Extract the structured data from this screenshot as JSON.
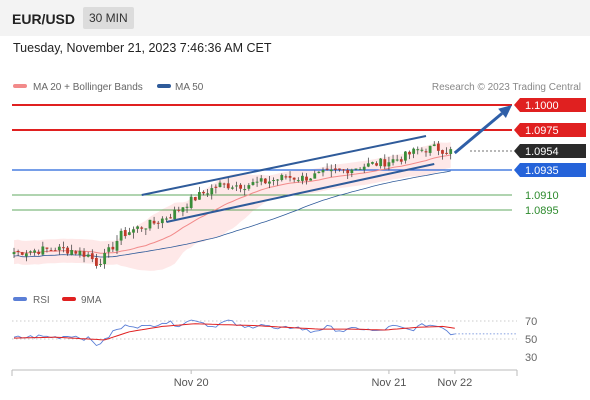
{
  "header": {
    "pair": "EUR/USD",
    "timeframe": "30 MIN",
    "datetime": "Tuesday, November 21, 2023 7:46:36 AM CET"
  },
  "legend": {
    "ma20": {
      "label": "MA 20 + Bollinger Bands",
      "color": "#f28a8a"
    },
    "ma50": {
      "label": "MA 50",
      "color": "#2f5b9a"
    },
    "source": "Research © 2023 Trading Central"
  },
  "rsi_legend": {
    "rsi": {
      "label": "RSI",
      "color": "#5b7fd6"
    },
    "ma9": {
      "label": "9MA",
      "color": "#e02020"
    }
  },
  "chart_data": {
    "type": "candlestick",
    "price_axis": {
      "min": 1.0835,
      "max": 1.1005
    },
    "x_labels": [
      {
        "label": "Nov 20",
        "index": 43
      },
      {
        "label": "Nov 21",
        "index": 91
      },
      {
        "label": "Nov 22",
        "index": 107
      }
    ],
    "last_price": 1.0954,
    "levels": [
      {
        "price": 1.1,
        "label": "1.1000",
        "kind": "resistance",
        "color": "#e02020"
      },
      {
        "price": 1.0975,
        "label": "1.0975",
        "kind": "resistance",
        "color": "#e02020"
      },
      {
        "price": 1.0935,
        "label": "1.0935",
        "kind": "pivot",
        "color": "#2563d9"
      },
      {
        "price": 1.091,
        "label": "1.0910",
        "kind": "support",
        "color": "#2e8b2e"
      },
      {
        "price": 1.0895,
        "label": "1.0895",
        "kind": "support",
        "color": "#2e8b2e"
      }
    ],
    "anchors": [
      [
        0,
        1.0853
      ],
      [
        10,
        1.0856
      ],
      [
        14,
        1.0855
      ],
      [
        18,
        1.085
      ],
      [
        20,
        1.0842
      ],
      [
        22,
        1.0848
      ],
      [
        26,
        1.087
      ],
      [
        30,
        1.0877
      ],
      [
        34,
        1.0882
      ],
      [
        38,
        1.089
      ],
      [
        42,
        1.0902
      ],
      [
        46,
        1.0912
      ],
      [
        50,
        1.092
      ],
      [
        56,
        1.092
      ],
      [
        62,
        1.0924
      ],
      [
        66,
        1.0928
      ],
      [
        70,
        1.0927
      ],
      [
        74,
        1.093
      ],
      [
        78,
        1.0933
      ],
      [
        82,
        1.0937
      ],
      [
        86,
        1.094
      ],
      [
        90,
        1.0943
      ],
      [
        94,
        1.0947
      ],
      [
        98,
        1.0955
      ],
      [
        102,
        1.0957
      ],
      [
        106,
        1.0954
      ]
    ],
    "channel": {
      "upper": [
        [
          31,
          1.091
        ],
        [
          100,
          1.0969
        ]
      ],
      "lower": [
        [
          37,
          1.0883
        ],
        [
          102,
          1.0941
        ]
      ]
    },
    "rsi": {
      "axis": {
        "min": 20,
        "max": 80
      },
      "ticks": [
        70,
        50,
        30
      ],
      "anchors": [
        [
          0,
          51
        ],
        [
          6,
          53
        ],
        [
          10,
          52
        ],
        [
          14,
          54
        ],
        [
          18,
          50
        ],
        [
          20,
          44
        ],
        [
          22,
          48
        ],
        [
          24,
          58
        ],
        [
          28,
          66
        ],
        [
          32,
          63
        ],
        [
          36,
          69
        ],
        [
          40,
          66
        ],
        [
          44,
          72
        ],
        [
          48,
          64
        ],
        [
          52,
          70
        ],
        [
          56,
          62
        ],
        [
          60,
          67
        ],
        [
          64,
          60
        ],
        [
          68,
          64
        ],
        [
          72,
          58
        ],
        [
          76,
          63
        ],
        [
          80,
          59
        ],
        [
          84,
          62
        ],
        [
          88,
          58
        ],
        [
          92,
          64
        ],
        [
          96,
          60
        ],
        [
          100,
          66
        ],
        [
          104,
          64
        ],
        [
          106,
          56
        ],
        [
          107,
          57
        ]
      ],
      "ma9_anchors": [
        [
          0,
          51
        ],
        [
          10,
          52
        ],
        [
          18,
          50
        ],
        [
          22,
          49
        ],
        [
          28,
          58
        ],
        [
          36,
          64
        ],
        [
          44,
          67
        ],
        [
          50,
          66
        ],
        [
          58,
          65
        ],
        [
          66,
          63
        ],
        [
          74,
          61
        ],
        [
          82,
          61
        ],
        [
          90,
          60
        ],
        [
          98,
          63
        ],
        [
          104,
          64
        ],
        [
          107,
          62
        ]
      ]
    }
  }
}
